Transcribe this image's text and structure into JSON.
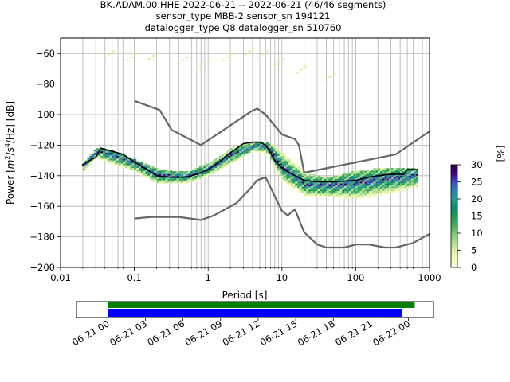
{
  "header": {
    "line1": "BK.ADAM.00.HHE   2022-06-21 -- 2022-06-21  (46/46 segments)",
    "line2": "sensor_type MBB-2 sensor_sn 194121",
    "line3": "datalogger_type Q8 datalogger_sn 510760"
  },
  "chart_data": [
    {
      "type": "heatmap",
      "title": "BK.ADAM.00.HHE   2022-06-21 -- 2022-06-21  (46/46 segments)",
      "xlabel": "Period [s]",
      "ylabel": "Power [m²/s⁴/Hz] [dB]",
      "ylabel_parts": {
        "prefix": "Power [",
        "m": "m",
        "sup1": "2",
        "mid": "/s",
        "sup2": "4",
        "suffix": "/Hz] [dB]"
      },
      "xscale": "log",
      "xlim": [
        0.01,
        1000
      ],
      "ylim": [
        -200,
        -50
      ],
      "x_ticks": [
        0.01,
        0.1,
        1,
        10,
        100,
        1000
      ],
      "x_tick_labels": [
        "0.01",
        "0.1",
        "1",
        "10",
        "100",
        "1000"
      ],
      "y_ticks": [
        -200,
        -180,
        -160,
        -140,
        -120,
        -100,
        -80,
        -60
      ],
      "y_tick_labels": [
        "−200",
        "−180",
        "−160",
        "−140",
        "−120",
        "−100",
        "−80",
        "−60"
      ],
      "grid": true,
      "colorbar": {
        "label": "[%]",
        "range": [
          0,
          30
        ],
        "ticks": [
          0,
          5,
          10,
          15,
          20,
          25,
          30
        ],
        "tick_labels": [
          "0",
          "5",
          "10",
          "15",
          "20",
          "25",
          "30"
        ]
      },
      "density": [
        {
          "period": 0.02,
          "spread": [
            -140,
            -132
          ],
          "peak": -134
        },
        {
          "period": 0.03,
          "spread": [
            -133,
            -122
          ],
          "peak": -124
        },
        {
          "period": 0.05,
          "spread": [
            -137,
            -124
          ],
          "peak": -127
        },
        {
          "period": 0.1,
          "spread": [
            -143,
            -130
          ],
          "peak": -132
        },
        {
          "period": 0.2,
          "spread": [
            -149,
            -136
          ],
          "peak": -140
        },
        {
          "period": 0.5,
          "spread": [
            -148,
            -138
          ],
          "peak": -141
        },
        {
          "period": 1,
          "spread": [
            -142,
            -132
          ],
          "peak": -136
        },
        {
          "period": 2,
          "spread": [
            -134,
            -122
          ],
          "peak": -127
        },
        {
          "period": 4,
          "spread": [
            -126,
            -118
          ],
          "peak": -121
        },
        {
          "period": 6,
          "spread": [
            -128,
            -118
          ],
          "peak": -121
        },
        {
          "period": 10,
          "spread": [
            -144,
            -124
          ],
          "peak": -135
        },
        {
          "period": 20,
          "spread": [
            -155,
            -138
          ],
          "peak": -146
        },
        {
          "period": 40,
          "spread": [
            -158,
            -142
          ],
          "peak": -147
        },
        {
          "period": 100,
          "spread": [
            -160,
            -137
          ],
          "peak": -145
        },
        {
          "period": 300,
          "spread": [
            -156,
            -135
          ],
          "peak": -142
        },
        {
          "period": 700,
          "spread": [
            -152,
            -135
          ],
          "peak": -140
        }
      ],
      "scattered_high_noise": [
        {
          "period": 0.05,
          "y": -60
        },
        {
          "period": 0.1,
          "y": -62
        },
        {
          "period": 0.2,
          "y": -61
        },
        {
          "period": 0.5,
          "y": -64
        },
        {
          "period": 1,
          "y": -66
        },
        {
          "period": 2,
          "y": -62
        },
        {
          "period": 4,
          "y": -58
        },
        {
          "period": 6,
          "y": -60
        },
        {
          "period": 10,
          "y": -65
        },
        {
          "period": 20,
          "y": -70
        },
        {
          "period": 50,
          "y": -75
        }
      ],
      "series": [
        {
          "role": "mode",
          "points": [
            [
              0.0195,
              -133
            ],
            [
              0.025,
              -130
            ],
            [
              0.03,
              -128
            ],
            [
              0.035,
              -122
            ],
            [
              0.05,
              -124
            ],
            [
              0.07,
              -126
            ],
            [
              0.1,
              -131
            ],
            [
              0.15,
              -136
            ],
            [
              0.2,
              -140
            ],
            [
              0.3,
              -141
            ],
            [
              0.5,
              -141
            ],
            [
              0.7,
              -139
            ],
            [
              1,
              -136
            ],
            [
              1.5,
              -130
            ],
            [
              2,
              -125
            ],
            [
              3,
              -119
            ],
            [
              4,
              -118
            ],
            [
              5,
              -118
            ],
            [
              6,
              -120
            ],
            [
              7,
              -125
            ],
            [
              8,
              -130
            ],
            [
              10,
              -135
            ],
            [
              15,
              -140
            ],
            [
              20,
              -143
            ],
            [
              30,
              -144
            ],
            [
              50,
              -144
            ],
            [
              100,
              -143
            ],
            [
              150,
              -141
            ],
            [
              200,
              -140
            ],
            [
              300,
              -139
            ],
            [
              450,
              -139
            ],
            [
              500,
              -136
            ],
            [
              700,
              -136
            ]
          ]
        },
        {
          "role": "high-noise-model",
          "points": [
            [
              0.1,
              -91
            ],
            [
              0.22,
              -97
            ],
            [
              0.32,
              -110
            ],
            [
              0.8,
              -120
            ],
            [
              3.8,
              -98
            ],
            [
              4.6,
              -96
            ],
            [
              6,
              -100
            ],
            [
              10,
              -113
            ],
            [
              15,
              -116
            ],
            [
              17,
              -120
            ],
            [
              20,
              -138
            ],
            [
              350,
              -126
            ],
            [
              1000,
              -111
            ]
          ]
        },
        {
          "role": "low-noise-model",
          "points": [
            [
              0.1,
              -168
            ],
            [
              0.17,
              -167
            ],
            [
              0.4,
              -167
            ],
            [
              0.8,
              -169
            ],
            [
              1.2,
              -166
            ],
            [
              2.4,
              -158
            ],
            [
              3.8,
              -148
            ],
            [
              4.6,
              -143
            ],
            [
              6,
              -141
            ],
            [
              10,
              -163
            ],
            [
              12,
              -166
            ],
            [
              15,
              -162
            ],
            [
              20,
              -177
            ],
            [
              30,
              -185
            ],
            [
              40,
              -187
            ],
            [
              70,
              -187
            ],
            [
              100,
              -185
            ],
            [
              150,
              -185
            ],
            [
              250,
              -187
            ],
            [
              350,
              -187
            ],
            [
              600,
              -184
            ],
            [
              1000,
              -178
            ]
          ]
        }
      ],
      "line_colors": {
        "mode": "#000000",
        "noise_models": "#666666"
      },
      "colormap": [
        "#ffffe5",
        "#f7fcb9",
        "#d9f0a3",
        "#addd8e",
        "#78c679",
        "#41ab5d",
        "#1a9850",
        "#0e8a6e",
        "#20a08a",
        "#2c7fb8",
        "#3b4cc0",
        "#3f007d",
        "#2d004b"
      ]
    },
    {
      "type": "bar",
      "role": "data-coverage",
      "xlim": [
        "2022-06-20 21:30",
        "2022-06-22 02:00"
      ],
      "x_ticks": [
        "2022-06-21 00:00",
        "2022-06-21 03:00",
        "2022-06-21 06:00",
        "2022-06-21 09:00",
        "2022-06-21 12:00",
        "2022-06-21 15:00",
        "2022-06-21 18:00",
        "2022-06-21 21:00",
        "2022-06-22 00:00"
      ],
      "x_tick_labels": [
        "06-21 00",
        "06-21 03",
        "06-21 06",
        "06-21 09",
        "06-21 12",
        "06-21 15",
        "06-21 18",
        "06-21 21",
        "06-22 00"
      ],
      "bars": [
        {
          "start": "2022-06-21 00:00",
          "end": "2022-06-22 00:30",
          "color": "#008000"
        },
        {
          "start": "2022-06-21 00:00",
          "end": "2022-06-21 23:30",
          "color": "#0000ff"
        }
      ]
    }
  ]
}
